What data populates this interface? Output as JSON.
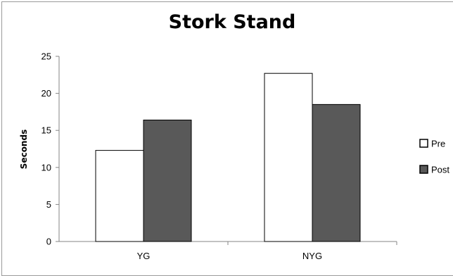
{
  "chart_data": {
    "type": "bar",
    "title": "Stork Stand",
    "xlabel": "",
    "ylabel": "Seconds",
    "categories": [
      "YG",
      "NYG"
    ],
    "series": [
      {
        "name": "Pre",
        "values": [
          12.3,
          22.7
        ],
        "color": "#ffffff"
      },
      {
        "name": "Post",
        "values": [
          16.4,
          18.5
        ],
        "color": "#595959"
      }
    ],
    "ylim": [
      0,
      25
    ],
    "yticks": [
      0,
      5,
      10,
      15,
      20,
      25
    ],
    "grid": false,
    "legend_position": "right",
    "legend": [
      "Pre",
      "Post"
    ]
  }
}
